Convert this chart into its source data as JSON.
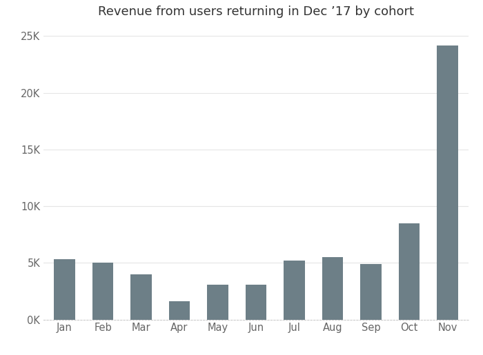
{
  "title": "Revenue from users returning in Dec ’17 by cohort",
  "categories": [
    "Jan",
    "Feb",
    "Mar",
    "Apr",
    "May",
    "Jun",
    "Jul",
    "Aug",
    "Sep",
    "Oct",
    "Nov"
  ],
  "values": [
    5300,
    5000,
    4000,
    1600,
    3100,
    3100,
    5200,
    5500,
    4900,
    8500,
    24200
  ],
  "bar_color": "#6d7f87",
  "background_color": "#ffffff",
  "ylim": [
    0,
    26000
  ],
  "yticks": [
    0,
    5000,
    10000,
    15000,
    20000,
    25000
  ],
  "ytick_labels": [
    "0K",
    "5K",
    "10K",
    "15K",
    "20K",
    "25K"
  ],
  "title_fontsize": 13,
  "tick_fontsize": 10.5,
  "grid_color": "#e5e5e5",
  "bottom_spine_color": "#cccccc"
}
